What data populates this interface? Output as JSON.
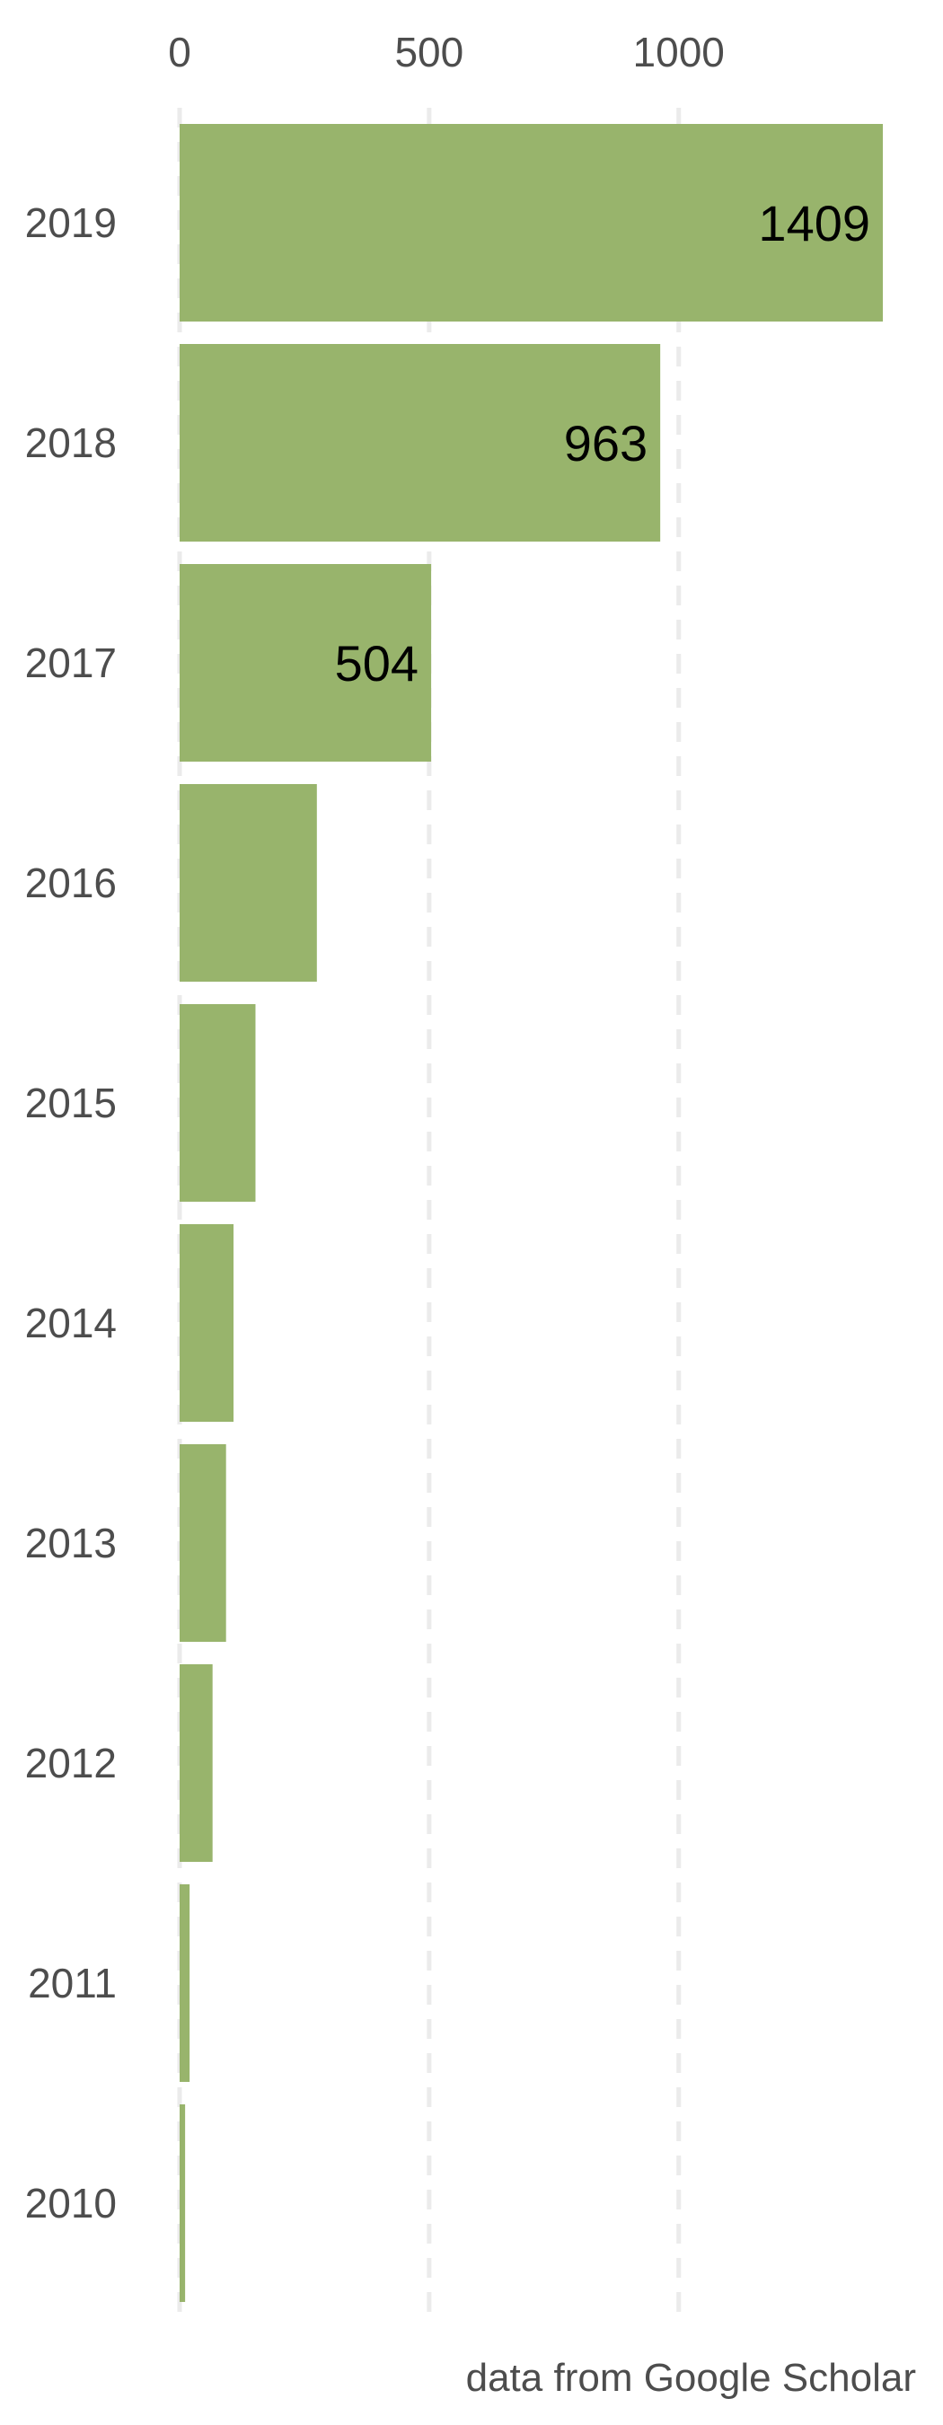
{
  "chart_data": {
    "type": "bar",
    "orientation": "horizontal",
    "categories": [
      "2019",
      "2018",
      "2017",
      "2016",
      "2015",
      "2014",
      "2013",
      "2012",
      "2011",
      "2010"
    ],
    "values": [
      1409,
      963,
      504,
      275,
      152,
      108,
      93,
      66,
      20,
      11
    ],
    "data_labels": [
      "1409",
      "963",
      "504",
      "",
      "",
      "",
      "",
      "",
      "",
      ""
    ],
    "x_ticks": [
      "0",
      "500",
      "1000"
    ],
    "x_tick_values": [
      0,
      500,
      1000
    ],
    "xlim": [
      0,
      1409
    ],
    "title": "",
    "xlabel": "",
    "ylabel": "",
    "caption": "data from Google Scholar",
    "grid": true,
    "legend": "none",
    "colors": {
      "bar": "#98b46c",
      "grid": "#ebebeb",
      "text": "#4d4d4d",
      "label": "#000000"
    }
  }
}
